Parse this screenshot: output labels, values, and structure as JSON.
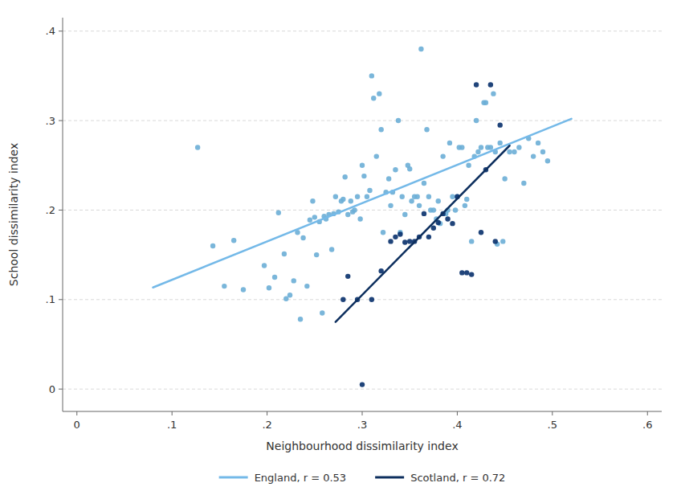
{
  "chart_data": {
    "type": "scatter",
    "xlabel": "Neighbourhood dissimilarity index",
    "ylabel": "School dissimilarity index",
    "xlim": [
      -0.015,
      0.615
    ],
    "ylim": [
      -0.025,
      0.415
    ],
    "xticks": [
      0,
      {
        "value": 0.1,
        "label": ".1"
      },
      {
        "value": 0.2,
        "label": ".2"
      },
      {
        "value": 0.3,
        "label": ".3"
      },
      {
        "value": 0.4,
        "label": ".4"
      },
      {
        "value": 0.5,
        "label": ".5"
      },
      {
        "value": 0.6,
        "label": ".6"
      }
    ],
    "yticks": [
      0,
      {
        "value": 0.1,
        "label": ".1"
      },
      {
        "value": 0.2,
        "label": ".2"
      },
      {
        "value": 0.3,
        "label": ".3"
      },
      {
        "value": 0.4,
        "label": ".4"
      }
    ],
    "grid": "y",
    "legend": "bottom",
    "series": [
      {
        "type": "scatter",
        "color": "#6baed6",
        "x": [
          0.127,
          0.143,
          0.155,
          0.165,
          0.175,
          0.197,
          0.202,
          0.208,
          0.212,
          0.218,
          0.22,
          0.224,
          0.228,
          0.232,
          0.235,
          0.238,
          0.242,
          0.245,
          0.248,
          0.25,
          0.252,
          0.255,
          0.258,
          0.26,
          0.262,
          0.265,
          0.268,
          0.27,
          0.272,
          0.275,
          0.278,
          0.28,
          0.282,
          0.285,
          0.288,
          0.29,
          0.292,
          0.295,
          0.298,
          0.3,
          0.302,
          0.305,
          0.308,
          0.31,
          0.312,
          0.315,
          0.318,
          0.32,
          0.322,
          0.325,
          0.328,
          0.33,
          0.332,
          0.335,
          0.338,
          0.34,
          0.342,
          0.345,
          0.348,
          0.35,
          0.352,
          0.355,
          0.358,
          0.36,
          0.362,
          0.365,
          0.368,
          0.37,
          0.372,
          0.375,
          0.378,
          0.38,
          0.382,
          0.385,
          0.388,
          0.39,
          0.392,
          0.395,
          0.398,
          0.4,
          0.402,
          0.405,
          0.408,
          0.41,
          0.412,
          0.415,
          0.418,
          0.42,
          0.422,
          0.425,
          0.428,
          0.43,
          0.432,
          0.435,
          0.438,
          0.44,
          0.442,
          0.445,
          0.448,
          0.45,
          0.455,
          0.46,
          0.465,
          0.47,
          0.475,
          0.48,
          0.485,
          0.49,
          0.495
        ],
        "values": [
          0.27,
          0.16,
          0.115,
          0.166,
          0.111,
          0.138,
          0.113,
          0.125,
          0.197,
          0.151,
          0.101,
          0.105,
          0.121,
          0.175,
          0.078,
          0.169,
          0.115,
          0.189,
          0.21,
          0.192,
          0.15,
          0.187,
          0.085,
          0.193,
          0.19,
          0.195,
          0.156,
          0.196,
          0.215,
          0.198,
          0.21,
          0.212,
          0.237,
          0.195,
          0.21,
          0.198,
          0.2,
          0.215,
          0.19,
          0.25,
          0.238,
          0.215,
          0.222,
          0.35,
          0.325,
          0.26,
          0.33,
          0.29,
          0.175,
          0.22,
          0.235,
          0.205,
          0.22,
          0.245,
          0.3,
          0.175,
          0.215,
          0.195,
          0.25,
          0.246,
          0.21,
          0.215,
          0.215,
          0.205,
          0.38,
          0.23,
          0.29,
          0.215,
          0.2,
          0.2,
          0.19,
          0.21,
          0.185,
          0.26,
          0.196,
          0.2,
          0.275,
          0.215,
          0.2,
          0.215,
          0.27,
          0.27,
          0.205,
          0.212,
          0.25,
          0.165,
          0.26,
          0.3,
          0.265,
          0.27,
          0.32,
          0.32,
          0.27,
          0.27,
          0.33,
          0.265,
          0.162,
          0.275,
          0.165,
          0.235,
          0.265,
          0.265,
          0.27,
          0.23,
          0.28,
          0.26,
          0.275,
          0.265,
          0.255
        ]
      },
      {
        "type": "scatter",
        "color": "#08306b",
        "x": [
          0.28,
          0.285,
          0.295,
          0.3,
          0.31,
          0.32,
          0.33,
          0.335,
          0.34,
          0.345,
          0.35,
          0.355,
          0.36,
          0.365,
          0.37,
          0.375,
          0.38,
          0.385,
          0.39,
          0.395,
          0.4,
          0.405,
          0.41,
          0.415,
          0.42,
          0.425,
          0.43,
          0.435,
          0.44,
          0.445
        ],
        "values": [
          0.1,
          0.126,
          0.1,
          0.005,
          0.1,
          0.132,
          0.165,
          0.17,
          0.173,
          0.164,
          0.165,
          0.165,
          0.17,
          0.196,
          0.17,
          0.18,
          0.186,
          0.196,
          0.19,
          0.185,
          0.215,
          0.13,
          0.13,
          0.128,
          0.34,
          0.175,
          0.245,
          0.34,
          0.165,
          0.295
        ]
      },
      {
        "type": "line",
        "name": "England, r =  0.53",
        "color": "#74b9e8",
        "x": [
          0.08,
          0.52
        ],
        "values": [
          0.1135,
          0.302
        ]
      },
      {
        "type": "line",
        "name": "Scotland, r =  0.72",
        "color": "#0d2f5e",
        "x": [
          0.272,
          0.455
        ],
        "values": [
          0.075,
          0.272
        ]
      }
    ]
  }
}
